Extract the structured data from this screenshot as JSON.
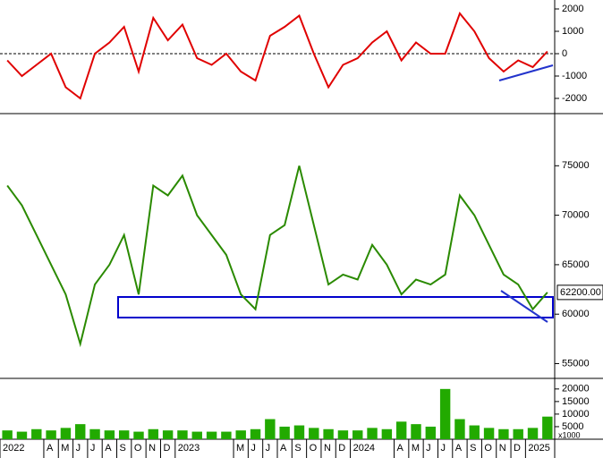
{
  "chart_data": [
    {
      "type": "line",
      "series": [
        {
          "color": "#e00000",
          "values": [
            -300,
            -1000,
            -500,
            0,
            -1500,
            -2000,
            0,
            500,
            1200,
            -800,
            1600,
            600,
            1300,
            -200,
            -500,
            0,
            -800,
            -1200,
            800,
            1200,
            1700,
            0,
            -1500,
            -500,
            -200,
            500,
            1000,
            -300,
            500,
            0,
            0,
            1800,
            1000,
            -200,
            -800,
            -300,
            -600,
            100
          ]
        }
      ],
      "ylim": [
        -2600,
        2400
      ],
      "yticks": [
        2000,
        1000,
        0,
        -1000,
        -2000
      ]
    },
    {
      "type": "line",
      "series": [
        {
          "color": "#2a8a00",
          "values": [
            73000,
            71000,
            68000,
            65000,
            62000,
            57000,
            63000,
            65000,
            68000,
            62000,
            73000,
            72000,
            74000,
            70000,
            68000,
            66000,
            62000,
            60500,
            68000,
            69000,
            75000,
            69000,
            63000,
            64000,
            63500,
            67000,
            65000,
            62000,
            63500,
            63000,
            64000,
            72000,
            70000,
            67000,
            64000,
            63000,
            60500,
            62200
          ]
        }
      ],
      "last_label": "62200.00",
      "ylim": [
        53600,
        80000
      ],
      "yticks": [
        75000,
        70000,
        65000,
        60000,
        55000
      ]
    },
    {
      "type": "bar",
      "categories": [
        "2022",
        null,
        null,
        "A",
        "M",
        "J",
        "J",
        "A",
        "S",
        "O",
        "N",
        "D",
        "2023",
        null,
        null,
        null,
        "M",
        "J",
        "J",
        "A",
        "S",
        "O",
        "N",
        "D",
        "2024",
        null,
        null,
        "A",
        "M",
        "J",
        "J",
        "A",
        "S",
        "O",
        "N",
        "D",
        "2025",
        null
      ],
      "series": [
        {
          "color": "#22aa00",
          "values": [
            3500,
            3000,
            4000,
            3500,
            4500,
            6000,
            4000,
            3500,
            3500,
            3000,
            4000,
            3500,
            3500,
            3000,
            3000,
            3000,
            3500,
            4000,
            8000,
            5000,
            5500,
            4500,
            4000,
            3500,
            3500,
            4500,
            4000,
            7000,
            6000,
            5000,
            20000,
            8000,
            5500,
            4500,
            4000,
            4000,
            4500,
            9000
          ]
        }
      ],
      "unit_label": "x1000",
      "ylim": [
        0,
        23500
      ],
      "yticks": [
        5000,
        10000,
        15000,
        20000
      ]
    }
  ]
}
